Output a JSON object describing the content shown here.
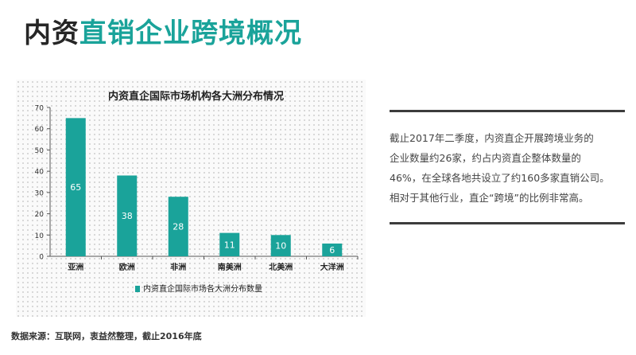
{
  "page": {
    "title_part1": "内资",
    "title_part2": "直销企业跨境概况"
  },
  "chart_data": {
    "type": "bar",
    "title": "内资直企国际市场机构各大洲分布情况",
    "categories": [
      "亚洲",
      "欧洲",
      "非洲",
      "南美洲",
      "北美洲",
      "大洋洲"
    ],
    "series": [
      {
        "name": "内资直企国际市场各大洲分布数量",
        "values": [
          65,
          38,
          28,
          11,
          10,
          6
        ]
      }
    ],
    "ylim": [
      0,
      70
    ],
    "yticks": [
      0,
      10,
      20,
      30,
      40,
      50,
      60,
      70
    ],
    "grid": false,
    "legend": "bottom",
    "bar_color": "#1aa39a",
    "label_color": "#ffffff"
  },
  "description": {
    "lines": [
      "截止2017年二季度，内资直企开展跨境业务的",
      "企业数量约26家，约占内资直企整体数量的",
      "46%，在全球各地共设立了约160多家直销公司。",
      "相对于其他行业，直企“跨境”的比例非常高。"
    ]
  },
  "source": "数据来源：互联网，衷益然整理，截止2016年底",
  "colors": {
    "accent": "#1aa39a",
    "title_dark": "#262626",
    "rule": "#3c3c3c"
  }
}
